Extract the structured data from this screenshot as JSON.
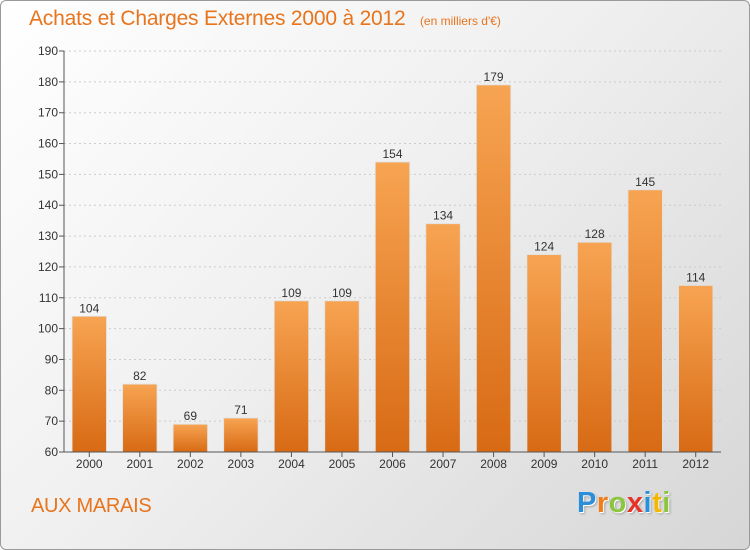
{
  "chart_data": {
    "type": "bar",
    "title": "Achats et Charges Externes 2000 à 2012",
    "subtitle": "(en milliers d'€)",
    "categories": [
      "2000",
      "2001",
      "2002",
      "2003",
      "2004",
      "2005",
      "2006",
      "2007",
      "2008",
      "2009",
      "2010",
      "2011",
      "2012"
    ],
    "values": [
      104,
      82,
      69,
      71,
      109,
      109,
      154,
      134,
      179,
      124,
      128,
      145,
      114
    ],
    "ylim": [
      60,
      190
    ],
    "yticks": [
      60,
      70,
      80,
      90,
      100,
      110,
      120,
      130,
      140,
      150,
      160,
      170,
      180,
      190
    ],
    "grid": true,
    "legend": "none",
    "bar_color": "#f28b2c"
  },
  "location": "AUX MARAIS",
  "brand": {
    "letters": [
      {
        "ch": "P",
        "color": "#2a8fd8"
      },
      {
        "ch": "r",
        "color": "#f07d1a"
      },
      {
        "ch": "o",
        "color": "#8cc63f"
      },
      {
        "ch": "x",
        "color": "#e5332a"
      },
      {
        "ch": "i",
        "color": "#2a8fd8"
      },
      {
        "ch": "t",
        "color": "#f5b800"
      },
      {
        "ch": "i",
        "color": "#8cc63f"
      }
    ]
  },
  "colors": {
    "accent": "#e8741c",
    "axis": "#555555",
    "grid": "#cccccc"
  }
}
